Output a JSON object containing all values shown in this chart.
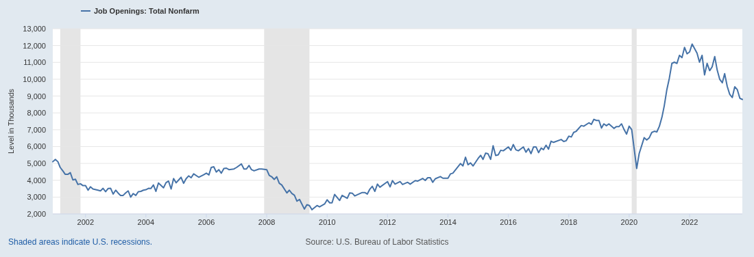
{
  "chart_data": {
    "type": "line",
    "ylabel": "Level in Thousands",
    "x": [
      "2000-12",
      "2001-01",
      "2001-02",
      "2001-03",
      "2001-04",
      "2001-05",
      "2001-06",
      "2001-07",
      "2001-08",
      "2001-09",
      "2001-10",
      "2001-11",
      "2001-12",
      "2002-01",
      "2002-02",
      "2002-03",
      "2002-04",
      "2002-06",
      "2002-07",
      "2002-08",
      "2002-09",
      "2002-10",
      "2002-11",
      "2002-12",
      "2003-01",
      "2003-02",
      "2003-03",
      "2003-04",
      "2003-05",
      "2003-06",
      "2003-07",
      "2003-08",
      "2003-09",
      "2003-10",
      "2003-11",
      "2003-12",
      "2004-01",
      "2004-02",
      "2004-03",
      "2004-04",
      "2004-05",
      "2004-06",
      "2004-08",
      "2004-09",
      "2004-10",
      "2004-11",
      "2004-12",
      "2005-01",
      "2005-02",
      "2005-03",
      "2005-04",
      "2005-05",
      "2005-06",
      "2005-07",
      "2005-08",
      "2005-10",
      "2005-12",
      "2006-01",
      "2006-02",
      "2006-03",
      "2006-04",
      "2006-05",
      "2006-06",
      "2006-07",
      "2006-08",
      "2006-09",
      "2006-10",
      "2006-12",
      "2007-01",
      "2007-03",
      "2007-04",
      "2007-05",
      "2007-06",
      "2007-07",
      "2007-08",
      "2007-10",
      "2007-11",
      "2008-01",
      "2008-02",
      "2008-03",
      "2008-04",
      "2008-05",
      "2008-06",
      "2008-07",
      "2008-09",
      "2008-10",
      "2008-11",
      "2008-12",
      "2009-01",
      "2009-02",
      "2009-04",
      "2009-05",
      "2009-06",
      "2009-07",
      "2009-09",
      "2009-10",
      "2009-12",
      "2010-01",
      "2010-02",
      "2010-03",
      "2010-04",
      "2010-06",
      "2010-07",
      "2010-09",
      "2010-10",
      "2010-11",
      "2010-12",
      "2011-03",
      "2011-04",
      "2011-05",
      "2011-06",
      "2011-07",
      "2011-08",
      "2011-09",
      "2011-10",
      "2012-01",
      "2012-02",
      "2012-03",
      "2012-04",
      "2012-06",
      "2012-07",
      "2012-09",
      "2012-10",
      "2012-12",
      "2013-01",
      "2013-03",
      "2013-04",
      "2013-05",
      "2013-06",
      "2013-07",
      "2013-08",
      "2013-10",
      "2013-11",
      "2014-01",
      "2014-02",
      "2014-03",
      "2014-06",
      "2014-07",
      "2014-08",
      "2014-09",
      "2014-10",
      "2014-11",
      "2015-01",
      "2015-02",
      "2015-03",
      "2015-04",
      "2015-05",
      "2015-06",
      "2015-07",
      "2015-08",
      "2015-09",
      "2015-10",
      "2015-11",
      "2016-01",
      "2016-02",
      "2016-03",
      "2016-04",
      "2016-05",
      "2016-07",
      "2016-08",
      "2016-09",
      "2016-10",
      "2016-11",
      "2016-12",
      "2017-01",
      "2017-02",
      "2017-03",
      "2017-04",
      "2017-05",
      "2017-06",
      "2017-07",
      "2017-10",
      "2017-11",
      "2017-12",
      "2018-01",
      "2018-02",
      "2018-03",
      "2018-04",
      "2018-06",
      "2018-07",
      "2018-09",
      "2018-10",
      "2018-11",
      "2018-12",
      "2019-01",
      "2019-02",
      "2019-03",
      "2019-04",
      "2019-05",
      "2019-07",
      "2019-08",
      "2019-09",
      "2019-10",
      "2019-11",
      "2019-12",
      "2020-01",
      "2020-02",
      "2020-04",
      "2020-05",
      "2020-07",
      "2020-08",
      "2020-09",
      "2020-10",
      "2020-11",
      "2020-12",
      "2021-01",
      "2021-02",
      "2021-03",
      "2021-04",
      "2021-05",
      "2021-06",
      "2021-07",
      "2021-08",
      "2021-09",
      "2021-10",
      "2021-11",
      "2021-12",
      "2022-01",
      "2022-02",
      "2022-04",
      "2022-05",
      "2022-06",
      "2022-07",
      "2022-08",
      "2022-09",
      "2022-10",
      "2022-11",
      "2022-12",
      "2023-01",
      "2023-02",
      "2023-03",
      "2023-04",
      "2023-05",
      "2023-06",
      "2023-07",
      "2023-08",
      "2023-09",
      "2023-10"
    ],
    "series": [
      {
        "name": "Job Openings: Total Nonfarm",
        "color": "#4572a7",
        "values": [
          5100,
          5240,
          5100,
          4760,
          4560,
          4350,
          4350,
          4450,
          4020,
          4060,
          3750,
          3790,
          3680,
          3680,
          3410,
          3610,
          3480,
          3410,
          3370,
          3520,
          3320,
          3510,
          3520,
          3180,
          3410,
          3230,
          3100,
          3100,
          3250,
          3370,
          3000,
          3210,
          3100,
          3320,
          3340,
          3410,
          3440,
          3520,
          3510,
          3720,
          3340,
          3840,
          3550,
          3860,
          3950,
          3480,
          4100,
          3850,
          4020,
          4180,
          3820,
          4090,
          4260,
          4150,
          4380,
          4180,
          4330,
          4420,
          4320,
          4760,
          4800,
          4490,
          4630,
          4420,
          4700,
          4720,
          4630,
          4670,
          4760,
          4970,
          4670,
          4670,
          4880,
          4630,
          4560,
          4670,
          4670,
          4630,
          4290,
          4210,
          4050,
          4210,
          3820,
          3720,
          3250,
          3410,
          3210,
          3110,
          2760,
          2860,
          2290,
          2550,
          2500,
          2250,
          2500,
          2420,
          2590,
          2840,
          2660,
          2660,
          3160,
          2800,
          3100,
          2930,
          3250,
          3230,
          3070,
          3270,
          3270,
          3180,
          3470,
          3640,
          3340,
          3770,
          3590,
          3920,
          3610,
          3980,
          3770,
          3920,
          3750,
          3880,
          3770,
          3980,
          3950,
          4110,
          3990,
          4150,
          4150,
          3880,
          4090,
          4220,
          4120,
          4120,
          4380,
          4420,
          4990,
          4850,
          5370,
          4920,
          5030,
          4850,
          5300,
          5480,
          5240,
          5610,
          5570,
          5240,
          6050,
          5470,
          5510,
          5780,
          5750,
          5980,
          5780,
          6120,
          5810,
          5750,
          5980,
          5670,
          5880,
          5580,
          5980,
          5980,
          5640,
          5910,
          5820,
          6080,
          5850,
          6320,
          6250,
          6420,
          6300,
          6350,
          6620,
          6570,
          6840,
          6910,
          7250,
          7210,
          7410,
          7320,
          7620,
          7550,
          7550,
          7100,
          7350,
          7240,
          7350,
          7080,
          7190,
          7190,
          7350,
          7010,
          6740,
          7210,
          7010,
          4700,
          5580,
          6530,
          6390,
          6530,
          6840,
          6910,
          6870,
          7210,
          7750,
          8430,
          9380,
          10060,
          10940,
          11010,
          10940,
          11420,
          11280,
          11890,
          11510,
          11620,
          12090,
          11550,
          11010,
          11420,
          10260,
          10940,
          10510,
          10740,
          11350,
          10540,
          9990,
          9790,
          10330,
          9580,
          9110,
          8910,
          9550,
          9380,
          8870,
          8800
        ]
      }
    ],
    "xlim": [
      "2000-12",
      "2023-10"
    ],
    "xticks": [
      "2002",
      "2004",
      "2006",
      "2008",
      "2010",
      "2012",
      "2014",
      "2016",
      "2018",
      "2020",
      "2022"
    ],
    "ylim": [
      2000,
      13000
    ],
    "yticks": [
      {
        "value": 2000,
        "label": "2,000"
      },
      {
        "value": 3000,
        "label": "3,000"
      },
      {
        "value": 4000,
        "label": "4,000"
      },
      {
        "value": 5000,
        "label": "5,000"
      },
      {
        "value": 6000,
        "label": "6,000"
      },
      {
        "value": 7000,
        "label": "7,000"
      },
      {
        "value": 8000,
        "label": "8,000"
      },
      {
        "value": 9000,
        "label": "9,000"
      },
      {
        "value": 10000,
        "label": "10,000"
      },
      {
        "value": 11000,
        "label": "11,000"
      },
      {
        "value": 12000,
        "label": "12,000"
      },
      {
        "value": 13000,
        "label": "13,000"
      }
    ],
    "bands": [
      {
        "axis": "x",
        "from": "2001-03",
        "to": "2001-11",
        "color": "#e5e5e5"
      },
      {
        "axis": "x",
        "from": "2007-12",
        "to": "2009-06",
        "color": "#e5e5e5"
      },
      {
        "axis": "x",
        "from": "2020-02",
        "to": "2020-04",
        "color": "#e5e5e5"
      }
    ],
    "annotations": [
      "Shaded areas indicate U.S. recessions.",
      "Source: U.S. Bureau of Labor Statistics"
    ],
    "grid": "y",
    "legend": "top left",
    "line_style": "solid",
    "marker": "none"
  }
}
